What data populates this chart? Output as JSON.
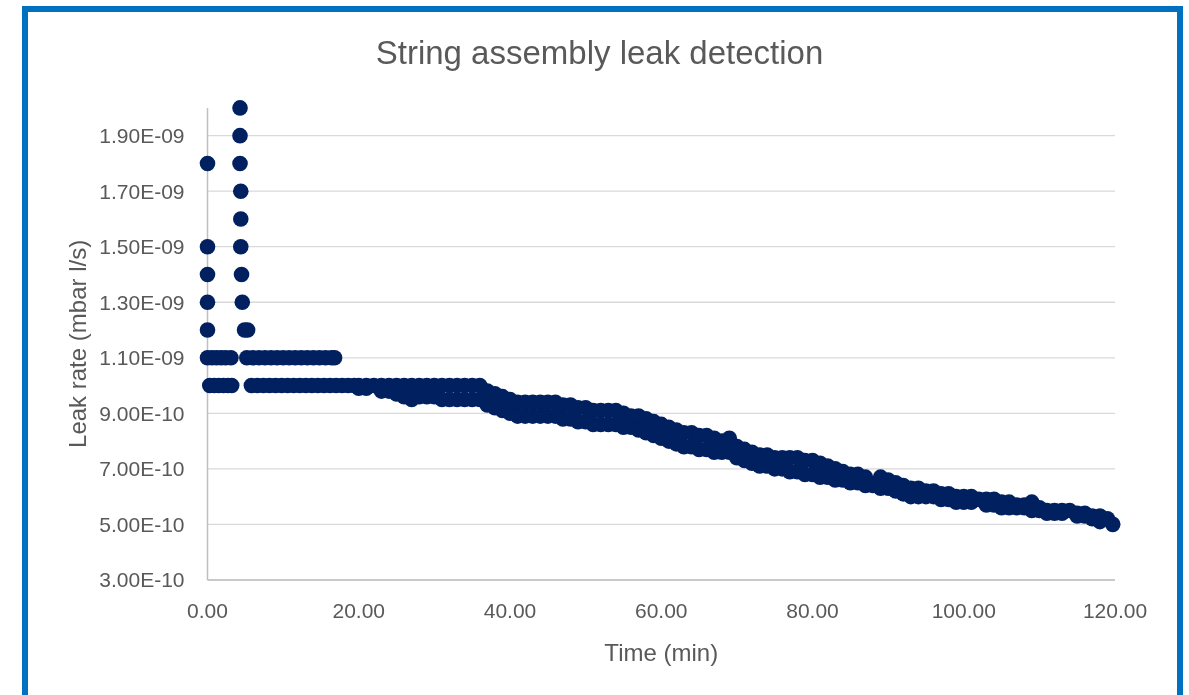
{
  "chart_data": {
    "type": "scatter",
    "title": "String assembly leak detection",
    "xlabel": "Time (min)",
    "ylabel": "Leak rate (mbar l/s)",
    "color": "#002060",
    "marker": "circle",
    "grid": "y",
    "xlim": [
      0,
      120
    ],
    "xticks": [
      {
        "value": 0,
        "label": "0.00"
      },
      {
        "value": 20,
        "label": "20.00"
      },
      {
        "value": 40,
        "label": "40.00"
      },
      {
        "value": 60,
        "label": "60.00"
      },
      {
        "value": 80,
        "label": "80.00"
      },
      {
        "value": 100,
        "label": "100.00"
      },
      {
        "value": 120,
        "label": "120.00"
      }
    ],
    "ylim": [
      3e-10,
      2e-09
    ],
    "yticks": [
      {
        "value": 3e-10,
        "label": "3.00E-10"
      },
      {
        "value": 5e-10,
        "label": "5.00E-10"
      },
      {
        "value": 7e-10,
        "label": "7.00E-10"
      },
      {
        "value": 9e-10,
        "label": "9.00E-10"
      },
      {
        "value": 1.1e-09,
        "label": "1.10E-09"
      },
      {
        "value": 1.3e-09,
        "label": "1.30E-09"
      },
      {
        "value": 1.5e-09,
        "label": "1.50E-09"
      },
      {
        "value": 1.7e-09,
        "label": "1.70E-09"
      },
      {
        "value": 1.9e-09,
        "label": "1.90E-09"
      }
    ],
    "x": [
      0,
      0,
      0,
      0,
      0,
      0,
      0.6,
      1.2,
      1.8,
      2.4,
      3.1,
      0.3,
      0.9,
      1.5,
      2.1,
      2.7,
      3.2,
      4.3,
      4.3,
      4.3,
      4.4,
      4.4,
      4.4,
      4.5,
      4.6,
      4.9,
      5.3,
      5.2,
      6.0,
      6.8,
      7.6,
      8.4,
      9.2,
      10.0,
      10.8,
      11.6,
      12.4,
      13.2,
      14.0,
      14.8,
      15.6,
      16.4,
      16.8,
      5.8,
      6.6,
      7.4,
      8.2,
      9.0,
      9.8,
      10.6,
      11.4,
      12.2,
      13.0,
      13.8,
      14.6,
      15.4,
      16.2,
      17.0,
      17.8,
      18.6,
      19.4,
      20,
      20,
      21,
      21,
      22,
      23,
      23,
      24,
      24,
      25,
      25,
      26,
      26,
      27,
      27,
      28,
      28,
      29,
      29,
      30,
      30,
      31,
      31,
      32,
      32,
      33,
      33,
      34,
      34,
      35,
      35,
      36,
      36,
      37,
      37,
      38,
      38,
      39,
      39,
      40,
      40,
      41,
      41,
      42,
      42,
      43,
      43,
      44,
      44,
      45,
      45,
      46,
      46,
      47,
      47,
      48,
      48,
      49,
      49,
      50,
      50,
      51,
      51,
      52,
      52,
      53,
      53,
      54,
      54,
      55,
      55,
      56,
      56,
      57,
      57,
      58,
      58,
      59,
      59,
      60,
      60,
      61,
      61,
      62,
      62,
      63,
      63,
      64,
      64,
      65,
      65,
      66,
      66,
      67,
      67,
      68,
      68,
      69,
      69,
      70,
      70,
      71,
      71,
      72,
      72,
      73,
      73,
      74,
      74,
      75,
      75,
      76,
      76,
      77,
      77,
      78,
      78,
      79,
      79,
      80,
      80,
      81,
      81,
      82,
      82,
      83,
      83,
      84,
      84,
      85,
      85,
      86,
      86,
      87,
      87,
      88,
      89,
      89,
      90,
      90,
      91,
      91,
      92,
      92,
      93,
      93,
      94,
      94,
      95,
      95,
      96,
      96,
      97,
      97,
      98,
      98,
      99,
      99,
      100,
      100,
      101,
      101,
      102,
      103,
      103,
      104,
      104,
      105,
      105,
      106,
      106,
      107,
      107,
      108,
      108,
      109,
      109,
      110,
      110,
      111,
      111,
      112,
      112,
      113,
      113,
      114,
      115,
      115,
      116,
      116,
      117,
      117,
      118,
      118,
      119,
      119.7
    ],
    "values": [
      1.8e-09,
      1.5e-09,
      1.4e-09,
      1.3e-09,
      1.2e-09,
      1.1e-09,
      1.1e-09,
      1.1e-09,
      1.1e-09,
      1.1e-09,
      1.1e-09,
      1e-09,
      1e-09,
      1e-09,
      1e-09,
      1e-09,
      1e-09,
      2e-09,
      1.9e-09,
      1.8e-09,
      1.7e-09,
      1.6e-09,
      1.5e-09,
      1.4e-09,
      1.3e-09,
      1.2e-09,
      1.2e-09,
      1.1e-09,
      1.1e-09,
      1.1e-09,
      1.1e-09,
      1.1e-09,
      1.1e-09,
      1.1e-09,
      1.1e-09,
      1.1e-09,
      1.1e-09,
      1.1e-09,
      1.1e-09,
      1.1e-09,
      1.1e-09,
      1.1e-09,
      1.1e-09,
      1e-09,
      1e-09,
      1e-09,
      1e-09,
      1e-09,
      1e-09,
      1e-09,
      1e-09,
      1e-09,
      1e-09,
      1e-09,
      1e-09,
      1e-09,
      1e-09,
      1e-09,
      1e-09,
      1e-09,
      1e-09,
      1e-09,
      9.9e-10,
      1e-09,
      9.9e-10,
      1e-09,
      1e-09,
      9.8e-10,
      1e-09,
      9.8e-10,
      1e-09,
      9.7e-10,
      1e-09,
      9.6e-10,
      1e-09,
      9.5e-10,
      1e-09,
      9.6e-10,
      1e-09,
      9.6e-10,
      1e-09,
      9.6e-10,
      1e-09,
      9.5e-10,
      1e-09,
      9.5e-10,
      1e-09,
      9.5e-10,
      1e-09,
      9.5e-10,
      1e-09,
      9.5e-10,
      1e-09,
      9.5e-10,
      9.8e-10,
      9.3e-10,
      9.7e-10,
      9.2e-10,
      9.6e-10,
      9.1e-10,
      9.5e-10,
      9e-10,
      9.4e-10,
      8.9e-10,
      9.4e-10,
      8.9e-10,
      9.4e-10,
      8.9e-10,
      9.4e-10,
      8.9e-10,
      9.4e-10,
      8.9e-10,
      9.4e-10,
      8.9e-10,
      9.3e-10,
      8.8e-10,
      9.3e-10,
      8.8e-10,
      9.2e-10,
      8.7e-10,
      9.2e-10,
      8.7e-10,
      9.1e-10,
      8.6e-10,
      9.1e-10,
      8.6e-10,
      9.1e-10,
      8.6e-10,
      9.1e-10,
      8.6e-10,
      9e-10,
      8.5e-10,
      8.9e-10,
      8.5e-10,
      8.9e-10,
      8.4e-10,
      8.8e-10,
      8.3e-10,
      8.7e-10,
      8.2e-10,
      8.6e-10,
      8.1e-10,
      8.5e-10,
      8e-10,
      8.4e-10,
      7.9e-10,
      8.3e-10,
      7.8e-10,
      8.3e-10,
      7.8e-10,
      8.2e-10,
      7.7e-10,
      8.2e-10,
      7.7e-10,
      8.1e-10,
      7.6e-10,
      8e-10,
      7.6e-10,
      8.1e-10,
      7.6e-10,
      7.8e-10,
      7.4e-10,
      7.7e-10,
      7.3e-10,
      7.6e-10,
      7.2e-10,
      7.5e-10,
      7.1e-10,
      7.5e-10,
      7.1e-10,
      7.4e-10,
      7e-10,
      7.4e-10,
      7e-10,
      7.4e-10,
      6.9e-10,
      7.4e-10,
      6.9e-10,
      7.3e-10,
      6.8e-10,
      7.3e-10,
      6.8e-10,
      7.2e-10,
      6.7e-10,
      7.1e-10,
      6.7e-10,
      7e-10,
      6.6e-10,
      6.9e-10,
      6.6e-10,
      6.8e-10,
      6.5e-10,
      6.8e-10,
      6.5e-10,
      6.7e-10,
      6.4e-10,
      6.4e-10,
      6.7e-10,
      6.3e-10,
      6.6e-10,
      6.3e-10,
      6.5e-10,
      6.2e-10,
      6.4e-10,
      6.1e-10,
      6.3e-10,
      6e-10,
      6.3e-10,
      6e-10,
      6.2e-10,
      6e-10,
      6.2e-10,
      6e-10,
      6.1e-10,
      5.9e-10,
      6.1e-10,
      5.9e-10,
      6e-10,
      5.8e-10,
      6e-10,
      5.8e-10,
      6e-10,
      5.8e-10,
      5.9e-10,
      5.9e-10,
      5.7e-10,
      5.9e-10,
      5.7e-10,
      5.8e-10,
      5.6e-10,
      5.8e-10,
      5.6e-10,
      5.7e-10,
      5.6e-10,
      5.7e-10,
      5.6e-10,
      5.8e-10,
      5.5e-10,
      5.6e-10,
      5.5e-10,
      5.5e-10,
      5.4e-10,
      5.5e-10,
      5.4e-10,
      5.5e-10,
      5.4e-10,
      5.5e-10,
      5.4e-10,
      5.3e-10,
      5.4e-10,
      5.3e-10,
      5.3e-10,
      5.2e-10,
      5.3e-10,
      5.1e-10,
      5.2e-10,
      5e-10
    ]
  }
}
